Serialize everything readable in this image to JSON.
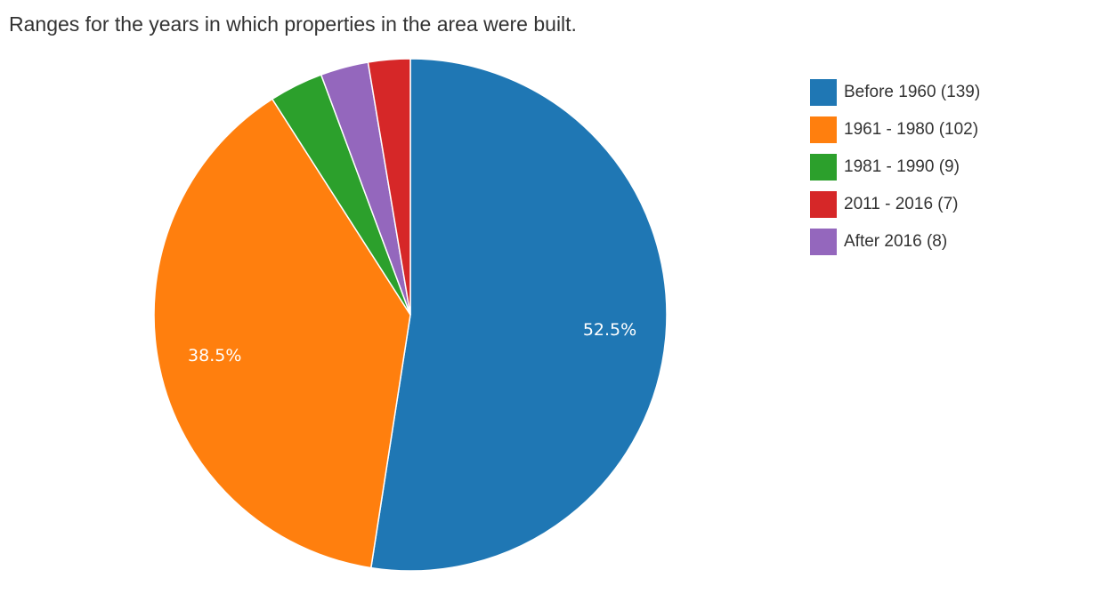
{
  "chart_data": {
    "type": "pie",
    "title": "Ranges for the years in which properties in the area were built.",
    "slices": [
      {
        "label": "Before 1960 (139)",
        "value": 139,
        "color": "#1f77b4",
        "pct_label": "52.5%"
      },
      {
        "label": "1961 - 1980 (102)",
        "value": 102,
        "color": "#ff7f0e",
        "pct_label": "38.5%"
      },
      {
        "label": "1981 - 1990 (9)",
        "value": 9,
        "color": "#2ca02c",
        "pct_label": ""
      },
      {
        "label": "After 2016 (8)",
        "value": 8,
        "color": "#9467bd",
        "pct_label": ""
      },
      {
        "label": "2011 - 2016 (7)",
        "value": 7,
        "color": "#d62728",
        "pct_label": ""
      }
    ],
    "legend": [
      {
        "label": "Before 1960 (139)",
        "color": "#1f77b4"
      },
      {
        "label": "1961 - 1980 (102)",
        "color": "#ff7f0e"
      },
      {
        "label": "1981 - 1990 (9)",
        "color": "#2ca02c"
      },
      {
        "label": "2011 - 2016 (7)",
        "color": "#d62728"
      },
      {
        "label": "After 2016 (8)",
        "color": "#9467bd"
      }
    ],
    "legend_position": "right"
  }
}
